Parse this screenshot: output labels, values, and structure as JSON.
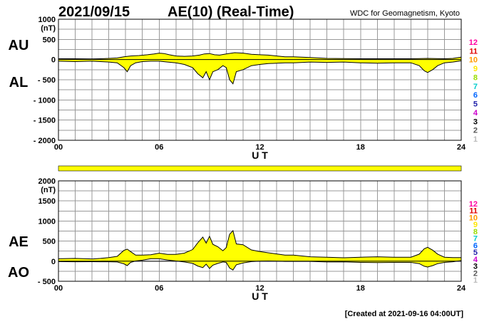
{
  "header": {
    "date": "2021/09/15",
    "title": "AE(10) (Real-Time)",
    "source": "WDC for Geomagnetism, Kyoto"
  },
  "footer": {
    "created": "[Created at 2021-09-16 04:00UT]"
  },
  "colors": {
    "fill": "#ffff00",
    "line": "#000000",
    "grid": "#999999"
  },
  "station_count": {
    "labels": [
      "12",
      "11",
      "10",
      "9",
      "8",
      "7",
      "6",
      "5",
      "4",
      "3",
      "2",
      "1"
    ],
    "colors": [
      "#ff00a0",
      "#e00000",
      "#ff9900",
      "#ffe600",
      "#99dd00",
      "#00cccc",
      "#0066ff",
      "#2222aa",
      "#cc00cc",
      "#000000",
      "#555555",
      "#bbbbbb"
    ]
  },
  "status_bar": {
    "color": "#ffff00"
  },
  "chart_data": [
    {
      "type": "area",
      "panel": "top",
      "unit": "(nT)",
      "xlabel": "U T",
      "xlim": [
        0,
        24
      ],
      "ylim": [
        -2000,
        1000
      ],
      "xticks": [
        "00",
        "06",
        "12",
        "18",
        "24"
      ],
      "yticks": [
        "1000",
        "500",
        "0",
        "- 500",
        "- 1000",
        "- 1500",
        "- 2000"
      ],
      "series": [
        {
          "name": "AU",
          "x": [
            0,
            1,
            2,
            2.5,
            3,
            3.5,
            3.9,
            4.3,
            4.8,
            5.3,
            5.7,
            6,
            6.3,
            6.6,
            7,
            7.5,
            8,
            8.4,
            8.7,
            9,
            9.3,
            9.6,
            10,
            10.5,
            11,
            11.5,
            12,
            12.5,
            13,
            13.5,
            14,
            15,
            16,
            17,
            18,
            19,
            20,
            21,
            21.5,
            22,
            22.5,
            23,
            23.5,
            24
          ],
          "y": [
            20,
            20,
            15,
            20,
            30,
            40,
            70,
            90,
            100,
            120,
            140,
            160,
            150,
            120,
            90,
            80,
            90,
            110,
            140,
            150,
            120,
            110,
            140,
            170,
            160,
            130,
            120,
            110,
            90,
            70,
            70,
            50,
            30,
            25,
            20,
            20,
            20,
            20,
            25,
            30,
            25,
            20,
            30,
            60
          ]
        },
        {
          "name": "AL",
          "x": [
            0,
            1,
            2,
            2.5,
            3,
            3.5,
            3.9,
            4.1,
            4.3,
            4.6,
            5,
            5.5,
            6,
            6.5,
            7,
            7.5,
            8,
            8.3,
            8.6,
            8.8,
            9,
            9.2,
            9.5,
            9.8,
            10,
            10.2,
            10.4,
            10.6,
            11,
            11.5,
            12,
            12.5,
            13,
            13.5,
            14,
            15,
            16,
            17,
            18,
            19,
            20,
            21,
            21.5,
            21.8,
            22,
            22.3,
            22.6,
            23,
            23.5,
            24
          ],
          "y": [
            -40,
            -50,
            -40,
            -50,
            -60,
            -80,
            -200,
            -300,
            -150,
            -80,
            -50,
            -40,
            -40,
            -60,
            -80,
            -120,
            -200,
            -350,
            -450,
            -300,
            -500,
            -300,
            -250,
            -150,
            -200,
            -500,
            -600,
            -300,
            -250,
            -150,
            -120,
            -100,
            -90,
            -80,
            -80,
            -60,
            -70,
            -60,
            -80,
            -90,
            -80,
            -80,
            -150,
            -280,
            -320,
            -250,
            -150,
            -80,
            -60,
            -30
          ]
        }
      ]
    },
    {
      "type": "area",
      "panel": "bottom",
      "unit": "(nT)",
      "xlabel": "U T",
      "xlim": [
        0,
        24
      ],
      "ylim": [
        -500,
        2000
      ],
      "xticks": [
        "00",
        "06",
        "12",
        "18",
        "24"
      ],
      "yticks": [
        "2000",
        "1500",
        "1000",
        "500",
        "0",
        "- 500"
      ],
      "series": [
        {
          "name": "AE",
          "x": [
            0,
            1,
            2,
            2.5,
            3,
            3.5,
            3.9,
            4.1,
            4.3,
            4.6,
            5,
            5.5,
            6,
            6.5,
            7,
            7.5,
            8,
            8.3,
            8.6,
            8.8,
            9,
            9.2,
            9.5,
            9.8,
            10,
            10.2,
            10.4,
            10.6,
            11,
            11.5,
            12,
            12.5,
            13,
            13.5,
            14,
            15,
            16,
            17,
            18,
            19,
            20,
            21,
            21.5,
            21.8,
            22,
            22.3,
            22.6,
            23,
            23.5,
            24
          ],
          "y": [
            60,
            70,
            55,
            70,
            90,
            120,
            270,
            300,
            240,
            150,
            150,
            160,
            200,
            170,
            170,
            200,
            290,
            460,
            600,
            450,
            620,
            420,
            360,
            260,
            340,
            670,
            760,
            430,
            410,
            280,
            240,
            210,
            180,
            150,
            150,
            110,
            100,
            85,
            100,
            110,
            100,
            100,
            175,
            310,
            345,
            275,
            175,
            100,
            90,
            90
          ]
        },
        {
          "name": "AO",
          "x": [
            0,
            1,
            2,
            2.5,
            3,
            3.5,
            3.9,
            4.1,
            4.3,
            4.6,
            5,
            5.5,
            6,
            6.5,
            7,
            7.5,
            8,
            8.3,
            8.6,
            8.8,
            9,
            9.2,
            9.5,
            9.8,
            10,
            10.2,
            10.4,
            10.6,
            11,
            11.5,
            12,
            12.5,
            13,
            13.5,
            14,
            15,
            16,
            17,
            18,
            19,
            20,
            21,
            21.5,
            21.8,
            22,
            22.3,
            22.6,
            23,
            23.5,
            24
          ],
          "y": [
            -10,
            -15,
            -12,
            -15,
            -15,
            -20,
            -65,
            -110,
            -30,
            5,
            25,
            60,
            60,
            30,
            5,
            -20,
            -55,
            -120,
            -160,
            -75,
            -180,
            -100,
            -55,
            -20,
            -30,
            -170,
            -220,
            -90,
            -45,
            -10,
            0,
            5,
            0,
            -5,
            -5,
            -5,
            -20,
            -17,
            -30,
            -35,
            -30,
            -30,
            -60,
            -125,
            -145,
            -110,
            -60,
            -30,
            -15,
            15
          ]
        }
      ]
    }
  ]
}
